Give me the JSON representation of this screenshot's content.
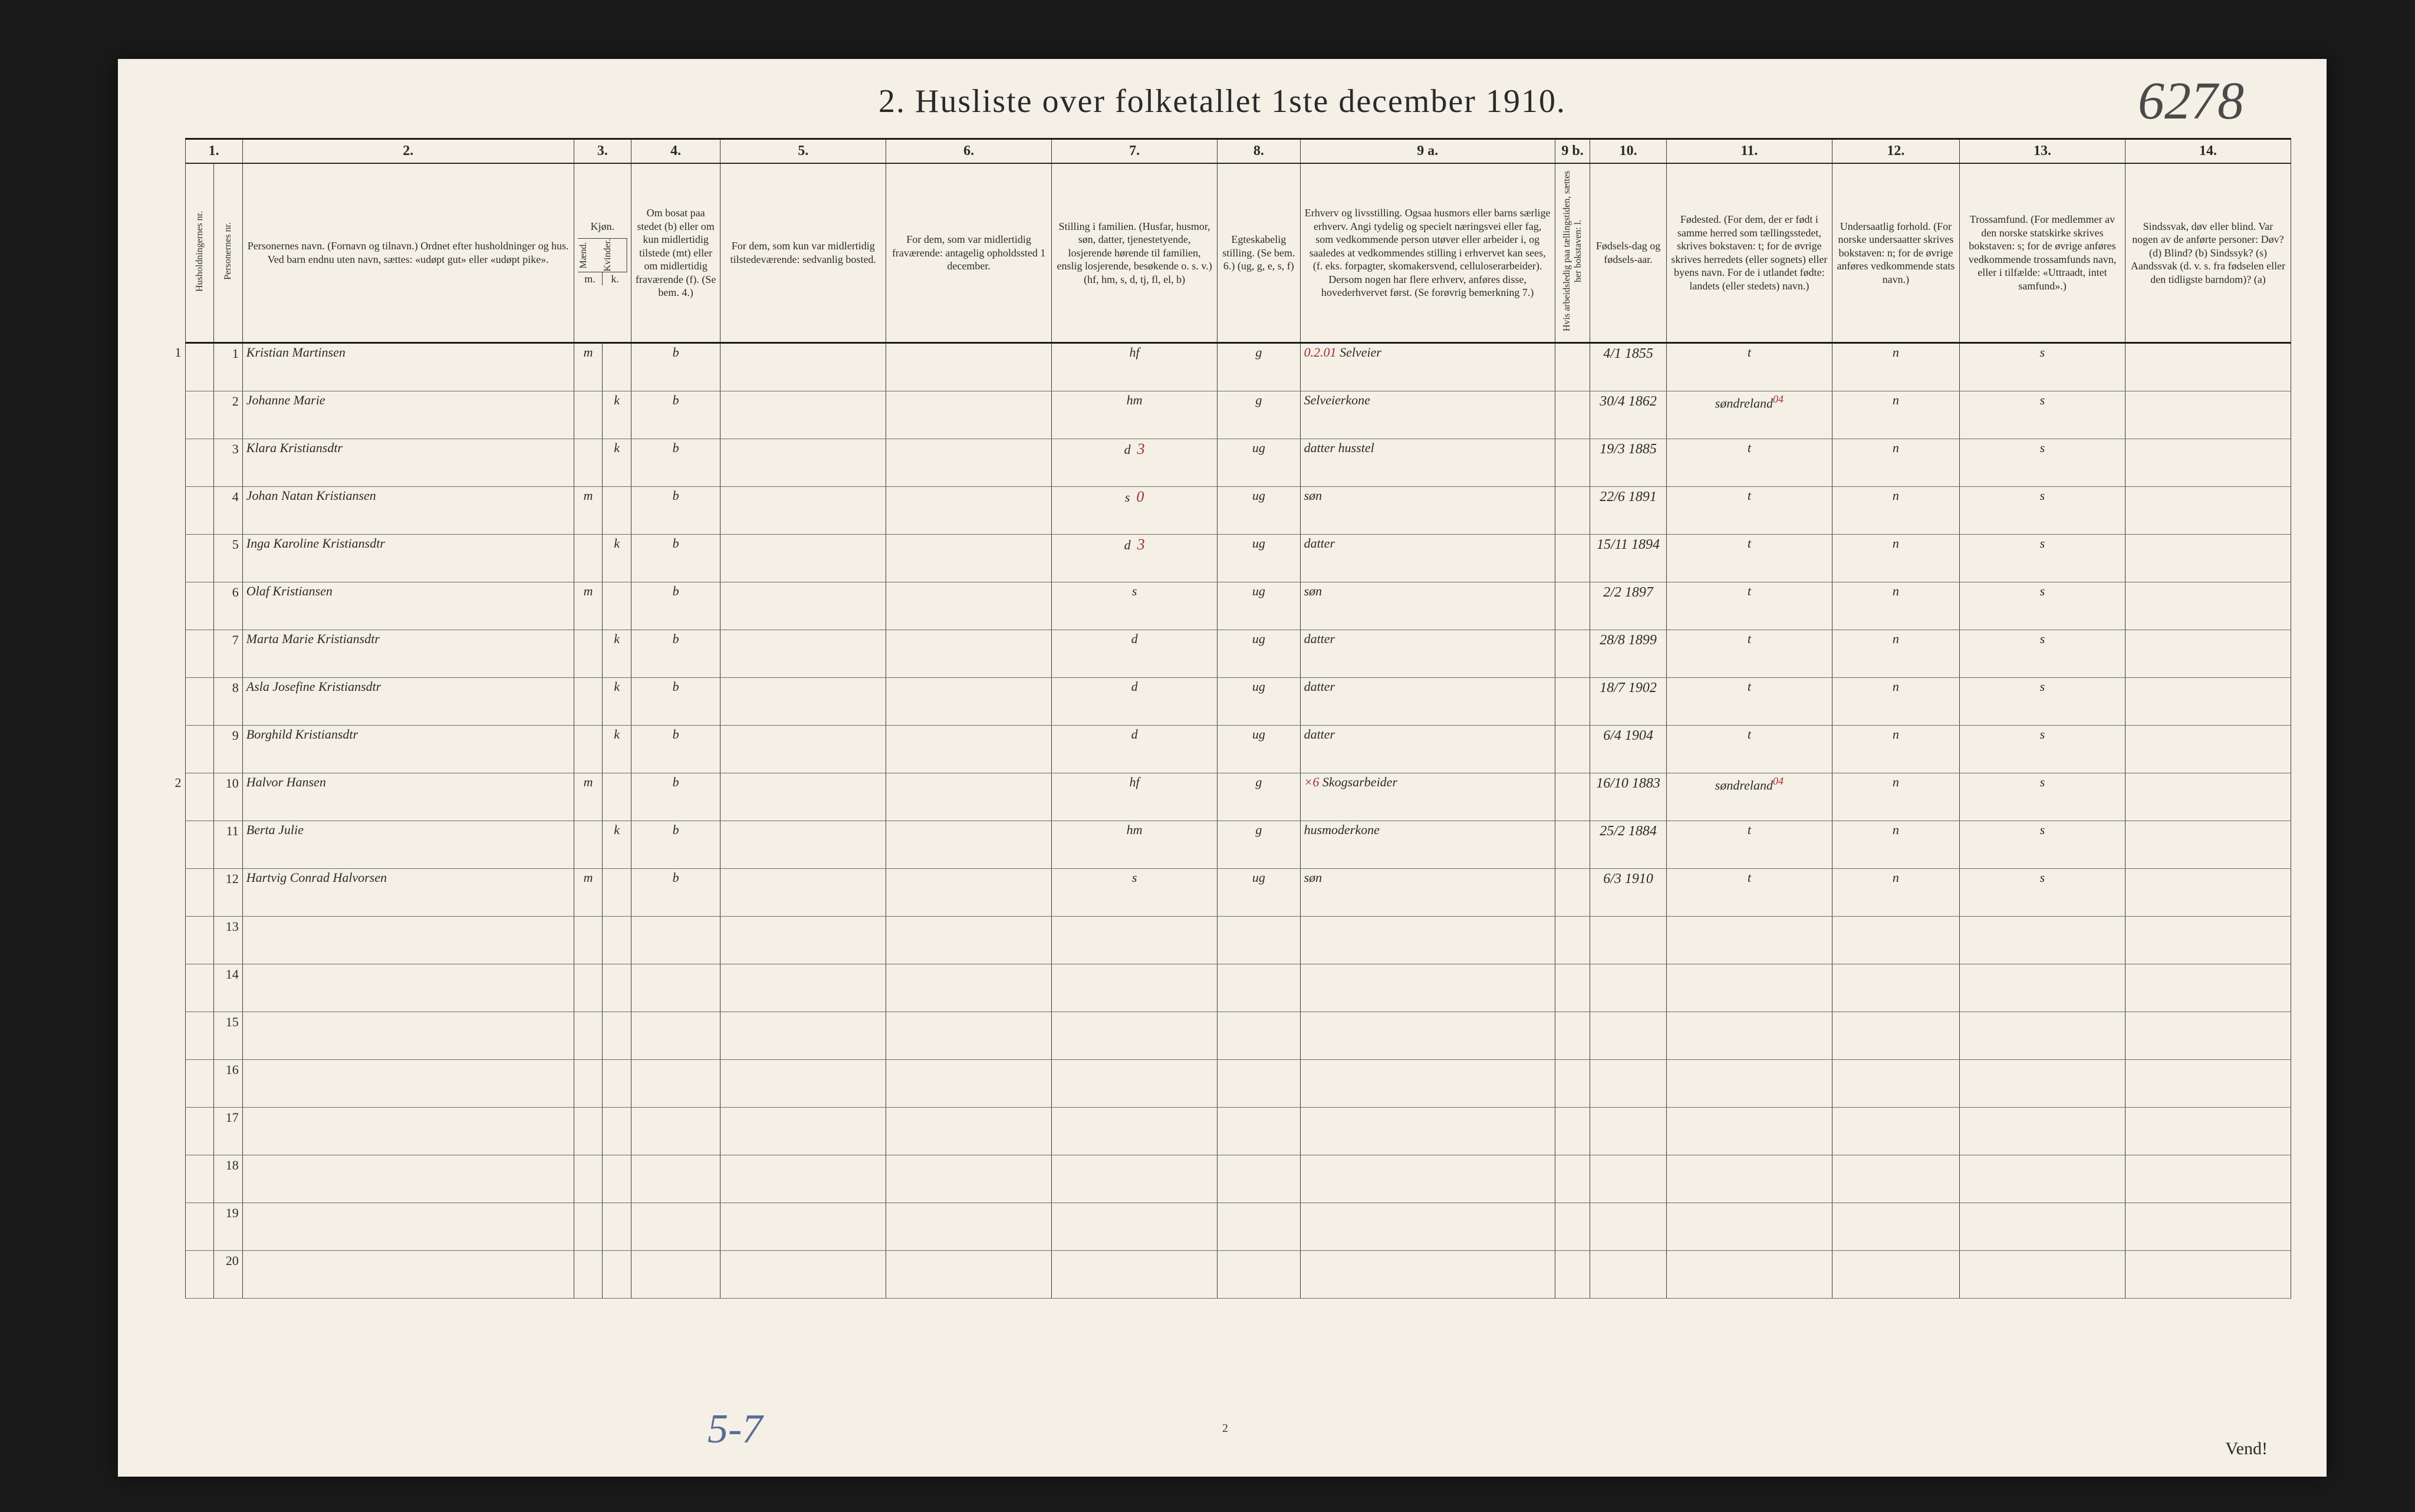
{
  "title": "2.  Husliste over folketallet 1ste december 1910.",
  "topright_handwriting": "6278",
  "footer_handwriting": "5-7",
  "page_small_num": "2",
  "vend_label": "Vend!",
  "column_numbers": [
    "1.",
    "",
    "2.",
    "3.",
    "",
    "4.",
    "5.",
    "6.",
    "7.",
    "8.",
    "9 a.",
    "9 b.",
    "10.",
    "11.",
    "12.",
    "13.",
    "14."
  ],
  "headers": {
    "c1": "Husholdningernes nr.",
    "c1b": "Personernes nr.",
    "c2": "Personernes navn.\n(Fornavn og tilnavn.)\nOrdnet efter husholdninger og hus.\nVed barn endnu uten navn, sættes: «udøpt gut» eller «udøpt pike».",
    "c3": "Kjøn.",
    "c3a": "Mænd.",
    "c3b": "Kvinder.",
    "c4": "Om bosat paa stedet (b) eller om kun midlertidig tilstede (mt) eller om midlertidig fraværende (f). (Se bem. 4.)",
    "c5": "For dem, som kun var midlertidig tilstedeværende:\nsedvanlig bosted.",
    "c6": "For dem, som var midlertidig fraværende:\nantagelig opholdssted 1 december.",
    "c7": "Stilling i familien.\n(Husfar, husmor, søn, datter, tjenestetyende, losjerende hørende til familien, enslig losjerende, besøkende o. s. v.)\n(hf, hm, s, d, tj, fl, el, b)",
    "c8": "Egteskabelig stilling.\n(Se bem. 6.)\n(ug, g, e, s, f)",
    "c9a": "Erhverv og livsstilling.\nOgsaa husmors eller barns særlige erhverv. Angi tydelig og specielt næringsvei eller fag, som vedkommende person utøver eller arbeider i, og saaledes at vedkommendes stilling i erhvervet kan sees, (f. eks. forpagter, skomakersvend, celluloserarbeider). Dersom nogen har flere erhverv, anføres disse, hovederhvervet først. (Se forøvrig bemerkning 7.)",
    "c9b": "Hvis arbeidsledig paa tællingstiden, sættes her bokstaven: l.",
    "c10": "Fødsels-dag og fødsels-aar.",
    "c11": "Fødested.\n(For dem, der er født i samme herred som tællingsstedet, skrives bokstaven: t; for de øvrige skrives herredets (eller sognets) eller byens navn. For de i utlandet fødte: landets (eller stedets) navn.)",
    "c12": "Undersaatlig forhold.\n(For norske undersaatter skrives bokstaven: n; for de øvrige anføres vedkommende stats navn.)",
    "c13": "Trossamfund.\n(For medlemmer av den norske statskirke skrives bokstaven: s; for de øvrige anføres vedkommende trossamfunds navn, eller i tilfælde: «Uttraadt, intet samfund».)",
    "c14": "Sindssvak, døv eller blind.\nVar nogen av de anførte personer:\nDøv? (d)\nBlind? (b)\nSindssyk? (s)\nAandssvak (d. v. s. fra fødselen eller den tidligste barndom)? (a)"
  },
  "kjon_sub": {
    "m": "m.",
    "k": "k."
  },
  "rows": [
    {
      "hh": "1",
      "pn": "1",
      "name": "Kristian Martinsen",
      "m": "m",
      "k": "",
      "b": "b",
      "c5": "",
      "c6": "",
      "fam": "hf",
      "eg": "g",
      "erhverv": "Selveier",
      "note9": "0.2.01",
      "dob": "4/1 1855",
      "fsted": "t",
      "und": "n",
      "tro": "s",
      "c14": ""
    },
    {
      "hh": "",
      "pn": "2",
      "name": "Johanne Marie",
      "m": "",
      "k": "k",
      "b": "b",
      "c5": "",
      "c6": "",
      "fam": "hm",
      "eg": "g",
      "erhverv": "Selveierkone",
      "note9": "",
      "dob": "30/4 1862",
      "fsted": "søndreland",
      "sup": "04",
      "und": "n",
      "tro": "s",
      "c14": ""
    },
    {
      "hh": "",
      "pn": "3",
      "name": "Klara Kristiansdtr",
      "m": "",
      "k": "k",
      "b": "b",
      "c5": "",
      "c6": "",
      "fam": "d",
      "famnote": "3",
      "eg": "ug",
      "erhverv": "datter husstel",
      "note9": "",
      "dob": "19/3 1885",
      "fsted": "t",
      "und": "n",
      "tro": "s",
      "c14": ""
    },
    {
      "hh": "",
      "pn": "4",
      "name": "Johan Natan Kristiansen",
      "m": "m",
      "k": "",
      "b": "b",
      "c5": "",
      "c6": "",
      "fam": "s",
      "famnote": "0",
      "eg": "ug",
      "erhverv": "søn",
      "note9": "",
      "dob": "22/6 1891",
      "fsted": "t",
      "und": "n",
      "tro": "s",
      "c14": ""
    },
    {
      "hh": "",
      "pn": "5",
      "name": "Inga Karoline Kristiansdtr",
      "m": "",
      "k": "k",
      "b": "b",
      "c5": "",
      "c6": "",
      "fam": "d",
      "famnote": "3",
      "eg": "ug",
      "erhverv": "datter",
      "note9": "",
      "dob": "15/11 1894",
      "fsted": "t",
      "und": "n",
      "tro": "s",
      "c14": ""
    },
    {
      "hh": "",
      "pn": "6",
      "name": "Olaf Kristiansen",
      "m": "m",
      "k": "",
      "b": "b",
      "c5": "",
      "c6": "",
      "fam": "s",
      "eg": "ug",
      "erhverv": "søn",
      "note9": "",
      "dob": "2/2 1897",
      "fsted": "t",
      "und": "n",
      "tro": "s",
      "c14": ""
    },
    {
      "hh": "",
      "pn": "7",
      "name": "Marta Marie Kristiansdtr",
      "m": "",
      "k": "k",
      "b": "b",
      "c5": "",
      "c6": "",
      "fam": "d",
      "eg": "ug",
      "erhverv": "datter",
      "note9": "",
      "dob": "28/8 1899",
      "fsted": "t",
      "und": "n",
      "tro": "s",
      "c14": ""
    },
    {
      "hh": "",
      "pn": "8",
      "name": "Asla Josefine Kristiansdtr",
      "m": "",
      "k": "k",
      "b": "b",
      "c5": "",
      "c6": "",
      "fam": "d",
      "eg": "ug",
      "erhverv": "datter",
      "note9": "",
      "dob": "18/7 1902",
      "fsted": "t",
      "und": "n",
      "tro": "s",
      "c14": ""
    },
    {
      "hh": "",
      "pn": "9",
      "name": "Borghild Kristiansdtr",
      "m": "",
      "k": "k",
      "b": "b",
      "c5": "",
      "c6": "",
      "fam": "d",
      "eg": "ug",
      "erhverv": "datter",
      "note9": "",
      "dob": "6/4 1904",
      "fsted": "t",
      "und": "n",
      "tro": "s",
      "c14": ""
    },
    {
      "hh": "2",
      "pn": "10",
      "name": "Halvor Hansen",
      "m": "m",
      "k": "",
      "b": "b",
      "c5": "",
      "c6": "",
      "fam": "hf",
      "eg": "g",
      "erhverv": "Skogsarbeider",
      "note9": "×6",
      "dob": "16/10 1883",
      "fsted": "søndreland",
      "sup": "04",
      "und": "n",
      "tro": "s",
      "c14": ""
    },
    {
      "hh": "",
      "pn": "11",
      "name": "Berta Julie",
      "m": "",
      "k": "k",
      "b": "b",
      "c5": "",
      "c6": "",
      "fam": "hm",
      "eg": "g",
      "erhverv": "husmoderkone",
      "note9": "",
      "dob": "25/2 1884",
      "fsted": "t",
      "und": "n",
      "tro": "s",
      "c14": ""
    },
    {
      "hh": "",
      "pn": "12",
      "name": "Hartvig Conrad Halvorsen",
      "m": "m",
      "k": "",
      "b": "b",
      "c5": "",
      "c6": "",
      "fam": "s",
      "eg": "ug",
      "erhverv": "søn",
      "note9": "",
      "dob": "6/3 1910",
      "fsted": "t",
      "und": "n",
      "tro": "s",
      "c14": ""
    }
  ],
  "empty_rows": [
    "13",
    "14",
    "15",
    "16",
    "17",
    "18",
    "19",
    "20"
  ]
}
